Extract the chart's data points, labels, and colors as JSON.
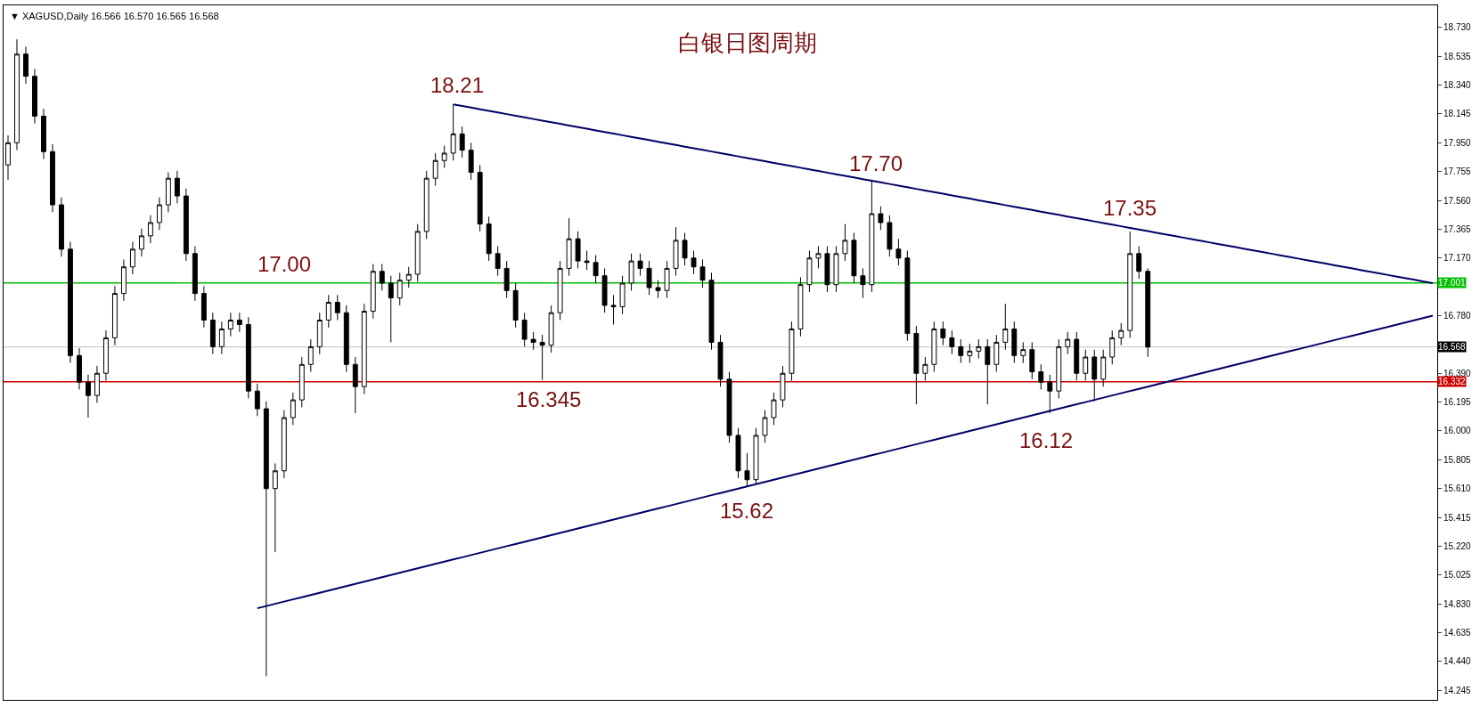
{
  "chart_data": {
    "type": "candlestick",
    "title": "白银日图周期",
    "subtitle": "▼ XAGUSD,Daily 16.566 16.570 16.565 16.568",
    "color": "#000000",
    "categories": [
      null,
      null,
      null,
      null,
      null,
      null,
      null,
      null,
      null,
      null,
      null,
      null,
      null,
      null,
      null,
      null,
      null,
      null,
      null,
      null,
      null,
      null,
      null,
      null,
      null,
      null,
      null,
      null,
      null,
      null,
      null,
      null,
      null,
      null,
      null,
      null,
      null,
      null,
      null,
      null,
      null,
      null,
      null,
      null,
      null,
      null,
      null,
      null,
      null,
      null,
      null,
      null,
      null,
      null,
      null,
      null,
      null,
      null,
      null,
      null,
      null,
      null,
      null,
      null,
      null,
      null,
      null,
      null,
      null,
      null,
      null,
      null,
      null,
      null,
      null,
      null,
      null,
      null,
      null,
      null,
      null,
      null,
      null,
      null,
      null,
      null,
      null,
      null,
      null,
      null,
      null,
      null,
      null,
      null,
      null,
      null,
      null,
      null,
      null,
      null,
      null,
      null,
      null,
      null,
      null,
      null,
      null,
      null,
      null,
      null,
      null,
      null,
      null,
      null,
      null,
      null,
      null,
      null,
      null,
      null,
      null,
      null,
      null,
      null,
      null,
      null,
      null,
      null,
      null,
      null,
      null,
      null,
      null,
      null,
      null,
      null,
      null,
      null,
      null,
      null,
      null,
      null,
      null,
      null,
      null,
      null,
      null,
      null,
      null,
      null,
      null,
      null,
      null,
      null,
      null,
      null,
      null,
      null,
      null,
      null,
      null
    ],
    "ohlc": [
      [
        17.8,
        18.0,
        17.7,
        17.95
      ],
      [
        17.95,
        18.65,
        17.9,
        18.55
      ],
      [
        18.55,
        18.6,
        18.35,
        18.4
      ],
      [
        18.4,
        18.45,
        18.08,
        18.13
      ],
      [
        18.13,
        18.18,
        17.84,
        17.89
      ],
      [
        17.89,
        17.94,
        17.48,
        17.53
      ],
      [
        17.53,
        17.58,
        17.18,
        17.23
      ],
      [
        17.23,
        17.28,
        16.46,
        16.51
      ],
      [
        16.51,
        16.56,
        16.28,
        16.33
      ],
      [
        16.33,
        16.38,
        16.09,
        16.24
      ],
      [
        16.24,
        16.44,
        16.19,
        16.39
      ],
      [
        16.39,
        16.68,
        16.34,
        16.63
      ],
      [
        16.63,
        16.98,
        16.58,
        16.93
      ],
      [
        16.93,
        17.16,
        16.88,
        17.11
      ],
      [
        17.11,
        17.28,
        17.06,
        17.23
      ],
      [
        17.23,
        17.37,
        17.18,
        17.32
      ],
      [
        17.32,
        17.46,
        17.27,
        17.41
      ],
      [
        17.41,
        17.58,
        17.36,
        17.53
      ],
      [
        17.53,
        17.75,
        17.48,
        17.71
      ],
      [
        17.71,
        17.76,
        17.54,
        17.59
      ],
      [
        17.59,
        17.64,
        17.15,
        17.2
      ],
      [
        17.2,
        17.25,
        16.88,
        16.93
      ],
      [
        16.93,
        16.98,
        16.7,
        16.75
      ],
      [
        16.75,
        16.8,
        16.52,
        16.57
      ],
      [
        16.57,
        16.74,
        16.52,
        16.69
      ],
      [
        16.69,
        16.8,
        16.64,
        16.75
      ],
      [
        16.75,
        16.8,
        16.67,
        16.72
      ],
      [
        16.72,
        16.77,
        16.22,
        16.27
      ],
      [
        16.27,
        16.32,
        16.1,
        16.15
      ],
      [
        16.15,
        16.2,
        14.34,
        15.61
      ],
      [
        15.61,
        15.78,
        15.18,
        15.73
      ],
      [
        15.73,
        16.14,
        15.68,
        16.09
      ],
      [
        16.09,
        16.26,
        16.04,
        16.21
      ],
      [
        16.21,
        16.5,
        16.16,
        16.45
      ],
      [
        16.45,
        16.62,
        16.4,
        16.57
      ],
      [
        16.57,
        16.8,
        16.52,
        16.75
      ],
      [
        16.75,
        16.92,
        16.7,
        16.87
      ],
      [
        16.87,
        16.92,
        16.75,
        16.8
      ],
      [
        16.8,
        16.85,
        16.4,
        16.45
      ],
      [
        16.45,
        16.5,
        16.12,
        16.3
      ],
      [
        16.3,
        16.86,
        16.25,
        16.81
      ],
      [
        16.81,
        17.13,
        16.76,
        17.08
      ],
      [
        17.08,
        17.13,
        16.95,
        17.0
      ],
      [
        17.0,
        17.05,
        16.6,
        16.9
      ],
      [
        16.9,
        17.07,
        16.85,
        17.02
      ],
      [
        17.02,
        17.11,
        16.97,
        17.06
      ],
      [
        17.06,
        17.4,
        17.01,
        17.35
      ],
      [
        17.35,
        17.76,
        17.3,
        17.71
      ],
      [
        17.71,
        17.88,
        17.66,
        17.83
      ],
      [
        17.83,
        17.93,
        17.78,
        17.88
      ],
      [
        17.88,
        18.21,
        17.83,
        18.01
      ],
      [
        18.01,
        18.06,
        17.85,
        17.9
      ],
      [
        17.9,
        17.95,
        17.7,
        17.75
      ],
      [
        17.75,
        17.8,
        17.35,
        17.4
      ],
      [
        17.4,
        17.45,
        17.15,
        17.2
      ],
      [
        17.2,
        17.25,
        17.05,
        17.1
      ],
      [
        17.1,
        17.15,
        16.9,
        16.95
      ],
      [
        16.95,
        17.0,
        16.7,
        16.75
      ],
      [
        16.75,
        16.8,
        16.57,
        16.62
      ],
      [
        16.62,
        16.67,
        16.55,
        16.6
      ],
      [
        16.6,
        16.65,
        16.345,
        16.58
      ],
      [
        16.58,
        16.85,
        16.53,
        16.8
      ],
      [
        16.8,
        17.15,
        16.75,
        17.1
      ],
      [
        17.1,
        17.44,
        17.05,
        17.3
      ],
      [
        17.3,
        17.35,
        17.1,
        17.15
      ],
      [
        17.15,
        17.22,
        17.09,
        17.14
      ],
      [
        17.14,
        17.19,
        17.0,
        17.05
      ],
      [
        17.05,
        17.1,
        16.8,
        16.85
      ],
      [
        16.85,
        16.92,
        16.72,
        16.84
      ],
      [
        16.84,
        17.05,
        16.79,
        17.0
      ],
      [
        17.0,
        17.2,
        16.95,
        17.15
      ],
      [
        17.15,
        17.2,
        17.05,
        17.1
      ],
      [
        17.1,
        17.15,
        16.92,
        16.97
      ],
      [
        16.97,
        17.02,
        16.9,
        16.95
      ],
      [
        16.95,
        17.15,
        16.9,
        17.1
      ],
      [
        17.1,
        17.38,
        17.05,
        17.29
      ],
      [
        17.29,
        17.34,
        17.12,
        17.17
      ],
      [
        17.17,
        17.22,
        17.06,
        17.11
      ],
      [
        17.11,
        17.16,
        16.97,
        17.02
      ],
      [
        17.02,
        17.07,
        16.55,
        16.6
      ],
      [
        16.6,
        16.65,
        16.3,
        16.35
      ],
      [
        16.35,
        16.4,
        15.92,
        15.97
      ],
      [
        15.97,
        16.02,
        15.68,
        15.73
      ],
      [
        15.73,
        15.85,
        15.62,
        15.67
      ],
      [
        15.67,
        16.02,
        15.64,
        15.97
      ],
      [
        15.97,
        16.14,
        15.92,
        16.09
      ],
      [
        16.09,
        16.26,
        16.04,
        16.21
      ],
      [
        16.21,
        16.44,
        16.16,
        16.39
      ],
      [
        16.39,
        16.74,
        16.34,
        16.69
      ],
      [
        16.69,
        17.04,
        16.64,
        16.99
      ],
      [
        16.99,
        17.22,
        16.94,
        17.17
      ],
      [
        17.17,
        17.25,
        17.1,
        17.2
      ],
      [
        17.2,
        17.25,
        16.94,
        16.99
      ],
      [
        16.99,
        17.25,
        16.94,
        17.2
      ],
      [
        17.2,
        17.4,
        17.15,
        17.29
      ],
      [
        17.29,
        17.34,
        17.0,
        17.05
      ],
      [
        17.05,
        17.1,
        16.9,
        16.99
      ],
      [
        16.99,
        17.7,
        16.94,
        17.47
      ],
      [
        17.47,
        17.52,
        17.36,
        17.41
      ],
      [
        17.41,
        17.46,
        17.18,
        17.23
      ],
      [
        17.23,
        17.3,
        17.12,
        17.17
      ],
      [
        17.17,
        17.22,
        16.61,
        16.66
      ],
      [
        16.66,
        16.71,
        16.18,
        16.39
      ],
      [
        16.39,
        16.5,
        16.34,
        16.45
      ],
      [
        16.45,
        16.74,
        16.4,
        16.69
      ],
      [
        16.69,
        16.74,
        16.58,
        16.63
      ],
      [
        16.63,
        16.68,
        16.52,
        16.57
      ],
      [
        16.57,
        16.62,
        16.46,
        16.51
      ],
      [
        16.51,
        16.59,
        16.46,
        16.54
      ],
      [
        16.54,
        16.62,
        16.49,
        16.57
      ],
      [
        16.57,
        16.62,
        16.18,
        16.45
      ],
      [
        16.45,
        16.65,
        16.4,
        16.6
      ],
      [
        16.6,
        16.86,
        16.55,
        16.69
      ],
      [
        16.69,
        16.74,
        16.46,
        16.51
      ],
      [
        16.51,
        16.6,
        16.46,
        16.55
      ],
      [
        16.55,
        16.6,
        16.35,
        16.4
      ],
      [
        16.4,
        16.45,
        16.28,
        16.33
      ],
      [
        16.33,
        16.38,
        16.12,
        16.27
      ],
      [
        16.27,
        16.62,
        16.22,
        16.57
      ],
      [
        16.57,
        16.67,
        16.52,
        16.62
      ],
      [
        16.62,
        16.67,
        16.34,
        16.39
      ],
      [
        16.39,
        16.55,
        16.34,
        16.5
      ],
      [
        16.5,
        16.55,
        16.2,
        16.35
      ],
      [
        16.35,
        16.55,
        16.3,
        16.5
      ],
      [
        16.5,
        16.68,
        16.45,
        16.63
      ],
      [
        16.63,
        16.73,
        16.58,
        16.68
      ],
      [
        16.68,
        17.35,
        16.63,
        17.2
      ],
      [
        17.2,
        17.25,
        17.03,
        17.08
      ],
      [
        17.08,
        17.1,
        16.5,
        16.568
      ],
      null,
      null,
      null,
      null,
      null,
      null,
      null,
      null,
      null,
      null,
      null,
      null,
      null,
      null,
      null,
      null,
      null,
      null,
      null,
      null,
      null,
      null,
      null,
      null,
      null,
      null,
      null,
      null,
      null,
      null,
      null,
      null
    ],
    "series": [
      {
        "type": "line",
        "color": "#000066",
        "values": [
          null,
          null,
          null,
          null,
          null,
          null,
          null,
          null,
          null,
          null,
          null,
          null,
          null,
          null,
          null,
          null,
          null,
          null,
          null,
          null,
          null,
          null,
          null,
          null,
          null,
          null,
          null,
          null,
          null,
          null,
          null,
          null,
          null,
          null,
          null,
          null,
          null,
          null,
          null,
          null,
          null,
          null,
          null,
          null,
          null,
          null,
          null,
          null,
          null,
          null,
          18.21,
          18.199,
          18.188,
          18.177,
          18.166,
          18.155,
          18.144,
          18.133,
          18.122,
          18.111,
          18.1,
          18.089,
          18.078,
          18.067,
          18.056,
          18.045,
          18.034,
          18.023,
          18.012,
          18.001,
          17.99,
          17.979,
          17.968,
          17.957,
          17.946,
          17.935,
          17.924,
          17.913,
          17.902,
          17.891,
          17.88,
          17.869,
          17.858,
          17.847,
          17.836,
          17.825,
          17.814,
          17.803,
          17.792,
          17.781,
          17.77,
          17.759,
          17.748,
          17.737,
          17.726,
          17.715,
          17.704,
          17.693,
          17.682,
          17.671,
          17.66,
          17.649,
          17.638,
          17.627,
          17.616,
          17.605,
          17.594,
          17.583,
          17.572,
          17.561,
          17.55,
          17.539,
          17.528,
          17.517,
          17.506,
          17.495,
          17.484,
          17.473,
          17.462,
          17.451,
          17.44,
          17.429,
          17.418,
          17.407,
          17.396,
          17.385,
          17.374,
          17.363,
          17.352,
          17.341,
          17.33,
          17.319,
          17.308,
          17.297,
          17.286,
          17.275,
          17.264,
          17.253,
          17.242,
          17.231,
          17.22,
          17.209,
          17.198,
          17.187,
          17.176,
          17.165,
          17.154,
          17.143,
          17.132,
          17.121,
          17.11,
          17.099,
          17.088,
          17.077,
          17.066,
          17.055,
          17.044,
          17.033,
          17.022,
          17.011,
          17.0
        ]
      },
      {
        "type": "line",
        "color": "#000066",
        "values": [
          null,
          null,
          null,
          null,
          null,
          null,
          null,
          null,
          null,
          null,
          null,
          null,
          null,
          null,
          null,
          null,
          null,
          null,
          null,
          null,
          null,
          null,
          null,
          null,
          null,
          null,
          null,
          null,
          14.8,
          14.815,
          14.83,
          14.845,
          14.86,
          14.875,
          14.89,
          14.905,
          14.92,
          14.935,
          14.95,
          14.965,
          14.98,
          14.995,
          15.01,
          15.025,
          15.04,
          15.055,
          15.07,
          15.085,
          15.1,
          15.115,
          15.13,
          15.145,
          15.16,
          15.175,
          15.19,
          15.205,
          15.22,
          15.235,
          15.25,
          15.265,
          15.28,
          15.295,
          15.31,
          15.325,
          15.34,
          15.355,
          15.37,
          15.385,
          15.4,
          15.415,
          15.43,
          15.445,
          15.46,
          15.475,
          15.49,
          15.505,
          15.52,
          15.535,
          15.55,
          15.565,
          15.58,
          15.595,
          15.61,
          15.625,
          15.64,
          15.655,
          15.67,
          15.685,
          15.7,
          15.715,
          15.73,
          15.745,
          15.76,
          15.775,
          15.79,
          15.805,
          15.82,
          15.835,
          15.85,
          15.865,
          15.88,
          15.895,
          15.91,
          15.925,
          15.94,
          15.955,
          15.97,
          15.985,
          16.0,
          16.015,
          16.03,
          16.045,
          16.06,
          16.075,
          16.09,
          16.105,
          16.12,
          16.135,
          16.15,
          16.165,
          16.18,
          16.195,
          16.21,
          16.225,
          16.24,
          16.255,
          16.27,
          16.285,
          16.3,
          16.315,
          16.33,
          16.345,
          16.36,
          16.375,
          16.39,
          16.405,
          16.42,
          16.435,
          16.45,
          16.465,
          16.48,
          16.495,
          16.51,
          16.525,
          16.54,
          16.555,
          16.57,
          16.585,
          16.6,
          16.615,
          16.63,
          16.645,
          16.66,
          16.675,
          16.69,
          16.705,
          16.72,
          16.735,
          16.75,
          16.765,
          16.78
        ]
      }
    ],
    "annotations": [
      {
        "text": "18.21",
        "y": 18.21
      },
      {
        "text": "17.00",
        "y": 17.0
      },
      {
        "text": "16.345",
        "y": 16.345
      },
      {
        "text": "15.62",
        "y": 15.62
      },
      {
        "text": "17.70",
        "y": 17.7
      },
      {
        "text": "17.35",
        "y": 17.35
      },
      {
        "text": "16.12",
        "y": 16.12
      }
    ],
    "ref_lines": [
      {
        "axis": "y",
        "value": 17.001,
        "label": "17.001",
        "color": "#00c000"
      },
      {
        "axis": "y",
        "value": 16.332,
        "label": "16.332",
        "color": "#d00000"
      },
      {
        "axis": "y",
        "value": 16.568,
        "label": "16.568",
        "color": "#c0c0c0"
      }
    ],
    "ylim": [
      14.18,
      18.88
    ],
    "yticks": [
      {
        "value": 14.245,
        "label": "14.245"
      },
      {
        "value": 14.44,
        "label": "14.440"
      },
      {
        "value": 14.635,
        "label": "14.635"
      },
      {
        "value": 14.83,
        "label": "14.830"
      },
      {
        "value": 15.025,
        "label": "15.025"
      },
      {
        "value": 15.22,
        "label": "15.220"
      },
      {
        "value": 15.415,
        "label": "15.415"
      },
      {
        "value": 15.61,
        "label": "15.610"
      },
      {
        "value": 15.805,
        "label": "15.805"
      },
      {
        "value": 16.0,
        "label": "16.000"
      },
      {
        "value": 16.195,
        "label": "16.195"
      },
      {
        "value": 16.39,
        "label": "16.390"
      },
      {
        "value": 16.78,
        "label": "16.780"
      },
      {
        "value": 17.17,
        "label": "17.170"
      },
      {
        "value": 17.365,
        "label": "17.365"
      },
      {
        "value": 17.56,
        "label": "17.560"
      },
      {
        "value": 17.755,
        "label": "17.755"
      },
      {
        "value": 17.95,
        "label": "17.950"
      },
      {
        "value": 18.145,
        "label": "18.145"
      },
      {
        "value": 18.34,
        "label": "18.340"
      },
      {
        "value": 18.535,
        "label": "18.535"
      },
      {
        "value": 18.73,
        "label": "18.730"
      }
    ],
    "tick_labels": "y"
  }
}
